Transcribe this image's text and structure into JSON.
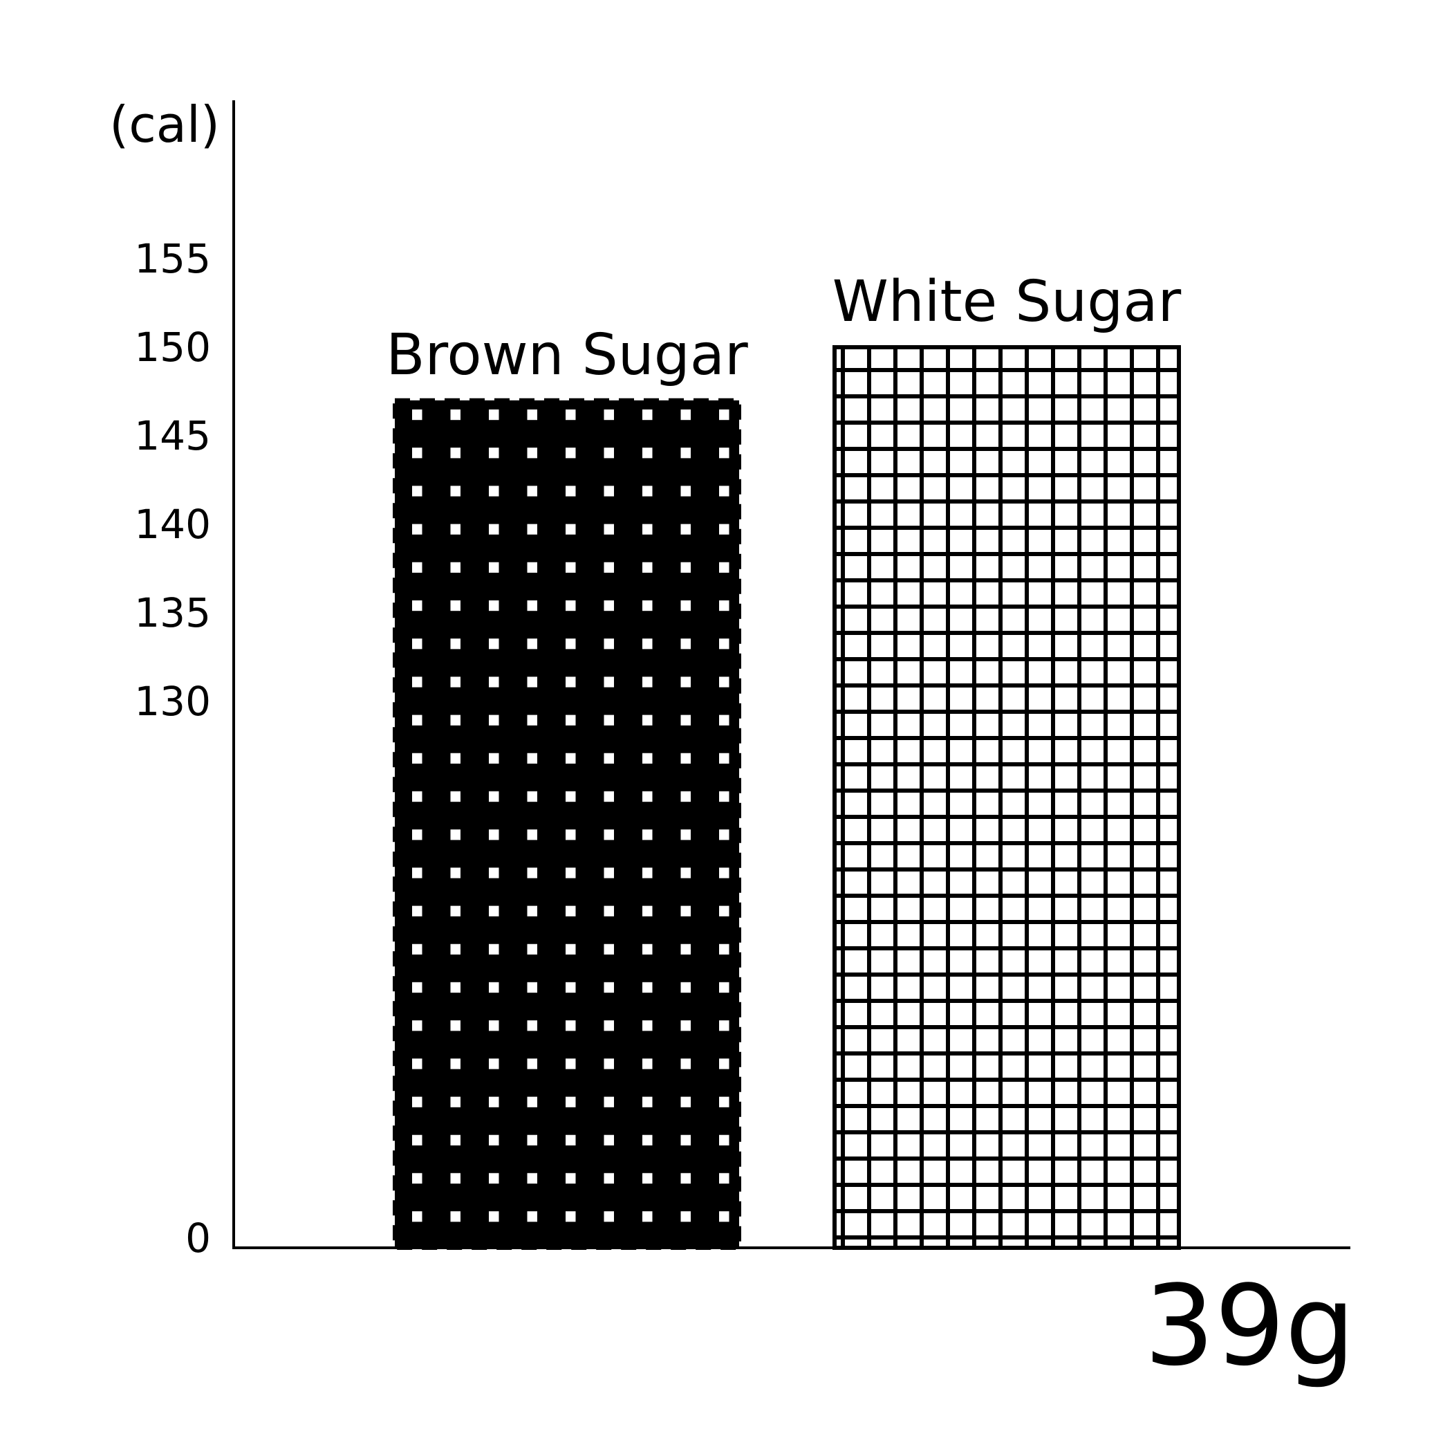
{
  "chart_data": {
    "type": "bar",
    "ylabel": "(cal)",
    "xlabel": "39g",
    "yticks": [
      "0",
      "130",
      "135",
      "140",
      "145",
      "150",
      "155"
    ],
    "categories": [
      "Brown Sugar",
      "White Sugar"
    ],
    "values": [
      147,
      150
    ],
    "series": [
      {
        "values": [
          147,
          150
        ]
      }
    ],
    "bar_patterns": [
      "white-dots-on-black",
      "black-grid-on-white"
    ],
    "axis_break": true,
    "grid": false,
    "colors": {
      "ink": "#000000",
      "paper": "#ffffff"
    }
  }
}
